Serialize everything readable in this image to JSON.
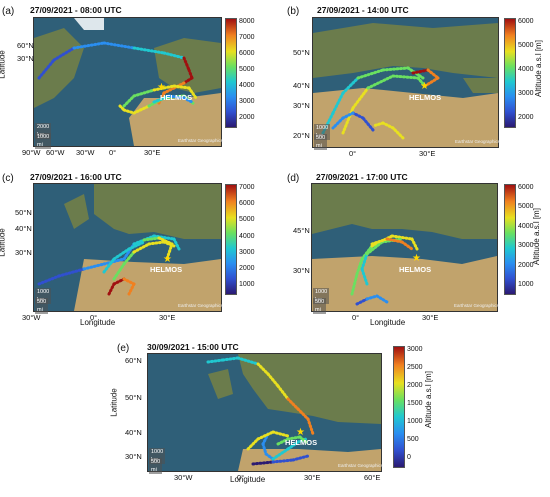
{
  "panels": [
    {
      "id": "a",
      "label": "(a)",
      "title": "27/09/2021 - 08:00 UTC",
      "yticks": [
        "60°N",
        "30°N"
      ],
      "xticks": [
        "90°W",
        "60°W",
        "30°W",
        "0°",
        "30°E"
      ],
      "ylabel": "Latitude",
      "xlabel": "",
      "cticks": [
        "8000",
        "7000",
        "6000",
        "5000",
        "4000",
        "3000",
        "2000"
      ],
      "clabel": "",
      "scale_km": "2000 km",
      "scale_mi": "1000 mi",
      "station": "HELMOS",
      "credit": "Earthstar Geographics"
    },
    {
      "id": "b",
      "label": "(b)",
      "title": "27/09/2021 - 14:00 UTC",
      "yticks": [
        "50°N",
        "40°N",
        "30°N",
        "20°N"
      ],
      "xticks": [
        "0°",
        "30°E"
      ],
      "ylabel": "",
      "xlabel": "",
      "cticks": [
        "6000",
        "5000",
        "4000",
        "3000",
        "2000"
      ],
      "clabel": "Altitude a.s.l [m]",
      "scale_km": "1000 km",
      "scale_mi": "500 mi",
      "station": "HELMOS",
      "credit": "Earthstar Geographics"
    },
    {
      "id": "c",
      "label": "(c)",
      "title": "27/09/2021 - 16:00 UTC",
      "yticks": [
        "50°N",
        "40°N",
        "30°N"
      ],
      "xticks": [
        "30°W",
        "0°",
        "30°E"
      ],
      "ylabel": "Latitude",
      "xlabel": "Longitude",
      "cticks": [
        "7000",
        "6000",
        "5000",
        "4000",
        "3000",
        "2000",
        "1000"
      ],
      "clabel": "",
      "scale_km": "1000 km",
      "scale_mi": "500 mi",
      "station": "HELMOS",
      "credit": "Earthstar Geographics"
    },
    {
      "id": "d",
      "label": "(d)",
      "title": "27/09/2021 - 17:00 UTC",
      "yticks": [
        "45°N",
        "30°N"
      ],
      "xticks": [
        "0°",
        "30°E"
      ],
      "ylabel": "",
      "xlabel": "Longitude",
      "cticks": [
        "6000",
        "5000",
        "4000",
        "3000",
        "2000",
        "1000"
      ],
      "clabel": "Altitude a.s.l [m]",
      "scale_km": "1000 km",
      "scale_mi": "500 mi",
      "station": "HELMOS",
      "credit": "Earthstar Geographics"
    },
    {
      "id": "e",
      "label": "(e)",
      "title": "30/09/2021 - 15:00 UTC",
      "yticks": [
        "60°N",
        "50°N",
        "40°N",
        "30°N"
      ],
      "xticks": [
        "30°W",
        "0°",
        "30°E",
        "60°E"
      ],
      "ylabel": "Latitude",
      "xlabel": "Longitude",
      "cticks": [
        "3000",
        "2500",
        "2000",
        "1500",
        "1000",
        "500",
        "0"
      ],
      "clabel": "Altitude a.s.l [m]",
      "scale_km": "1000 km",
      "scale_mi": "500 mi",
      "station": "HELMOS",
      "credit": "Earthstar Geographics"
    }
  ],
  "colors": {
    "ocean": "#2f5f78",
    "land_green": "#6f7d4a",
    "land_desert": "#c9a66b",
    "ice": "#e8eef2"
  }
}
